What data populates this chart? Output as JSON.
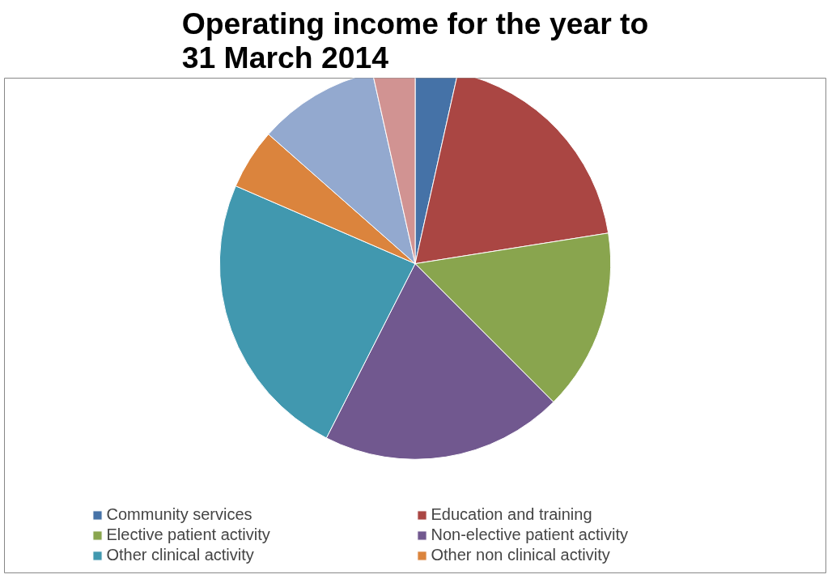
{
  "chart_data": {
    "type": "pie",
    "title": "Operating income for the year to 31 March 2014",
    "categories": [
      "Community services",
      "Education and training",
      "Elective patient activity",
      "Non-elective patient activity",
      "Other clinical activity",
      "Other non clinical activity",
      null,
      null
    ],
    "values": [
      3.5,
      19,
      15,
      20,
      24,
      5,
      10,
      3.5
    ],
    "colors": [
      "#4572a7",
      "#aa4643",
      "#89a54e",
      "#71588f",
      "#4198af",
      "#db843d",
      "#93a9cf",
      "#d19392"
    ],
    "legend": "bottom"
  }
}
